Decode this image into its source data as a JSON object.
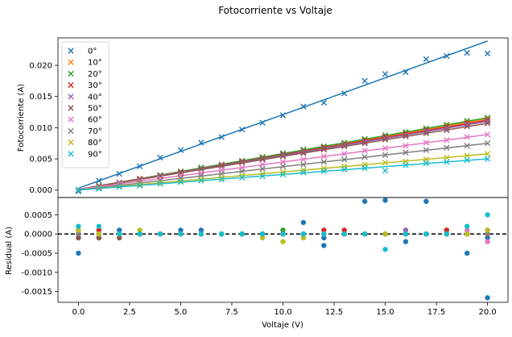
{
  "title": "Fotocorriente vs Voltaje",
  "chart_data": [
    {
      "type": "scatter",
      "panel": "top",
      "ylabel": "Fotocorriente (A)",
      "xlim": [
        -1,
        21
      ],
      "ylim": [
        -0.0012,
        0.0244
      ],
      "yticks": [
        "0.000",
        "0.005",
        "0.010",
        "0.015",
        "0.020"
      ],
      "ytick_values": [
        0,
        0.005,
        0.01,
        0.015,
        0.02
      ],
      "legend_position": "upper-left",
      "x": [
        0,
        1,
        2,
        3,
        4,
        5,
        6,
        7,
        8,
        9,
        10,
        11,
        12,
        13,
        14,
        15,
        16,
        17,
        18,
        19,
        20
      ],
      "series": [
        {
          "name": "0°",
          "color": "#1f77b4",
          "slope": 0.00118,
          "intercept": 0.0003,
          "values": [
            -0.0002,
            0.0015,
            0.0026,
            0.0038,
            0.0052,
            0.0064,
            0.0076,
            0.0085,
            0.0097,
            0.0108,
            0.012,
            0.0134,
            0.014,
            0.0155,
            0.0175,
            0.0186,
            0.0189,
            0.021,
            0.0215,
            0.022,
            0.0219
          ]
        },
        {
          "name": "10°",
          "color": "#ff7f0e",
          "slope": 0.000565,
          "intercept": 0.0001,
          "values": [
            0.0,
            0.0007,
            0.0012,
            0.0018,
            0.0024,
            0.0029,
            0.0035,
            0.0041,
            0.0046,
            0.0052,
            0.0058,
            0.0063,
            0.0069,
            0.0075,
            0.008,
            0.0086,
            0.0092,
            0.0097,
            0.0103,
            0.0109,
            0.0114
          ]
        },
        {
          "name": "20°",
          "color": "#2ca02c",
          "slope": 0.000575,
          "intercept": 0.0001,
          "values": [
            0.0,
            0.0007,
            0.0012,
            0.0018,
            0.0024,
            0.003,
            0.0036,
            0.0041,
            0.0047,
            0.0053,
            0.0059,
            0.0065,
            0.007,
            0.0076,
            0.0082,
            0.0088,
            0.0093,
            0.0099,
            0.0105,
            0.0111,
            0.0116
          ]
        },
        {
          "name": "30°",
          "color": "#d62728",
          "slope": 0.000555,
          "intercept": 0.0001,
          "values": [
            0.0,
            0.0006,
            0.0012,
            0.0018,
            0.0023,
            0.0029,
            0.0034,
            0.004,
            0.0046,
            0.0051,
            0.0057,
            0.0062,
            0.0068,
            0.0073,
            0.0079,
            0.0085,
            0.009,
            0.0096,
            0.0101,
            0.0107,
            0.0112
          ]
        },
        {
          "name": "40°",
          "color": "#9467bd",
          "slope": 0.000545,
          "intercept": 0.0001,
          "values": [
            0.0,
            0.0006,
            0.0012,
            0.0017,
            0.0023,
            0.0028,
            0.0034,
            0.0039,
            0.0045,
            0.005,
            0.0056,
            0.0061,
            0.0066,
            0.0072,
            0.0077,
            0.0083,
            0.0088,
            0.0094,
            0.0099,
            0.0105,
            0.011
          ]
        },
        {
          "name": "50°",
          "color": "#8c564b",
          "slope": 0.00053,
          "intercept": 0.0001,
          "values": [
            0.0,
            0.0006,
            0.0011,
            0.0017,
            0.0022,
            0.0027,
            0.0033,
            0.0038,
            0.0044,
            0.0049,
            0.0054,
            0.0059,
            0.0065,
            0.007,
            0.0075,
            0.0081,
            0.0086,
            0.0091,
            0.0096,
            0.0102,
            0.0107
          ]
        },
        {
          "name": "60°",
          "color": "#e377c2",
          "slope": 0.00044,
          "intercept": 0.0001,
          "values": [
            0.0,
            0.0005,
            0.001,
            0.0014,
            0.0019,
            0.0023,
            0.0027,
            0.0032,
            0.0036,
            0.0041,
            0.0045,
            0.0049,
            0.0054,
            0.0058,
            0.0063,
            0.0067,
            0.0071,
            0.0076,
            0.008,
            0.0085,
            0.0089
          ]
        },
        {
          "name": "70°",
          "color": "#7f7f7f",
          "slope": 0.000375,
          "intercept": 0.0,
          "values": [
            0.0,
            0.0004,
            0.0008,
            0.0011,
            0.0015,
            0.0019,
            0.0023,
            0.0026,
            0.003,
            0.0034,
            0.0038,
            0.0041,
            0.0045,
            0.0049,
            0.0053,
            0.0056,
            0.006,
            0.0064,
            0.0068,
            0.0071,
            0.0075
          ]
        },
        {
          "name": "80°",
          "color": "#bcbd22",
          "slope": 0.00029,
          "intercept": 0.0,
          "values": [
            0.0,
            0.0003,
            0.0006,
            0.0009,
            0.0012,
            0.0015,
            0.0017,
            0.002,
            0.0023,
            0.0026,
            0.0029,
            0.0032,
            0.0035,
            0.0038,
            0.0041,
            0.0044,
            0.0046,
            0.0049,
            0.0052,
            0.0055,
            0.0058
          ]
        },
        {
          "name": "90°",
          "color": "#17becf",
          "slope": 0.00025,
          "intercept": 0.0,
          "values": [
            0.0,
            0.0002,
            0.0005,
            0.0007,
            0.001,
            0.0013,
            0.0015,
            0.0017,
            0.002,
            0.0022,
            0.0025,
            0.0028,
            0.003,
            0.0033,
            0.0035,
            0.0031,
            0.004,
            0.0043,
            0.0045,
            0.0048,
            0.005
          ]
        }
      ]
    },
    {
      "type": "scatter",
      "panel": "bottom",
      "xlabel": "Voltaje (V)",
      "ylabel": "Residual (A)",
      "xlim": [
        -1,
        21
      ],
      "ylim": [
        -0.00178,
        0.00095
      ],
      "xticks": [
        "0.0",
        "2.5",
        "5.0",
        "7.5",
        "10.0",
        "12.5",
        "15.0",
        "17.5",
        "20.0"
      ],
      "xtick_values": [
        0,
        2.5,
        5,
        7.5,
        10,
        12.5,
        15,
        17.5,
        20
      ],
      "yticks": [
        "0.0005",
        "0.0000",
        "-0.0005",
        "-0.0010",
        "-0.0015"
      ],
      "ytick_values": [
        0.0005,
        0,
        -0.0005,
        -0.001,
        -0.0015
      ],
      "reference_line": 0,
      "x": [
        0,
        1,
        2,
        3,
        4,
        5,
        6,
        7,
        8,
        9,
        10,
        11,
        12,
        13,
        14,
        15,
        16,
        17,
        18,
        19,
        20
      ],
      "residuals": [
        {
          "name": "0°",
          "color": "#1f77b4",
          "values": [
            -0.0005,
            0.0,
            0.0001,
            0.0,
            0.0,
            0.0001,
            0.0001,
            0.0,
            0.0,
            0.0,
            0.0,
            0.0,
            -0.0001,
            0.0,
            0.00085,
            0.00088,
            0.0,
            0.00085,
            0.0,
            -0.0005,
            -0.0001
          ]
        },
        {
          "name": "10°",
          "color": "#ff7f0e",
          "values": [
            0.0,
            0.0001,
            0.0,
            0.0,
            0.0,
            0.0,
            0.0,
            0.0,
            0.0,
            0.0,
            0.0,
            0.0,
            0.0,
            0.0,
            0.0,
            0.0,
            0.0,
            0.0,
            0.0,
            0.0,
            0.0
          ]
        },
        {
          "name": "20°",
          "color": "#2ca02c",
          "values": [
            -0.0001,
            -0.0001,
            0.0,
            0.0,
            0.0,
            0.0,
            0.0,
            0.0,
            0.0,
            0.0,
            0.0001,
            0.0,
            0.0,
            0.0,
            0.0,
            0.0,
            0.0,
            0.0,
            0.0001,
            0.0,
            0.0
          ]
        },
        {
          "name": "30°",
          "color": "#d62728",
          "values": [
            0.0001,
            0.0001,
            0.0,
            0.0,
            0.0,
            0.0,
            0.0,
            0.0,
            0.0,
            0.0,
            0.0,
            0.0,
            0.0001,
            0.0001,
            0.0,
            0.0,
            0.0,
            0.0,
            0.0001,
            0.0,
            0.0
          ]
        },
        {
          "name": "40°",
          "color": "#9467bd",
          "values": [
            0.0,
            -0.0001,
            0.0,
            0.0,
            0.0,
            0.0,
            0.0,
            0.0,
            0.0,
            0.0,
            0.0,
            0.0,
            0.0,
            0.0,
            0.0,
            0.0,
            0.0001,
            0.0,
            0.0,
            0.0,
            0.0001
          ]
        },
        {
          "name": "50°",
          "color": "#8c564b",
          "values": [
            -0.0001,
            -0.0001,
            -0.0001,
            0.0,
            0.0,
            0.0,
            0.0,
            0.0,
            0.0,
            0.0,
            0.0,
            0.0,
            0.0,
            0.0,
            0.0,
            0.0,
            0.0,
            0.0,
            0.0,
            0.0,
            0.0
          ]
        },
        {
          "name": "60°",
          "color": "#e377c2",
          "values": [
            0.0,
            0.0,
            0.0,
            0.0,
            0.0,
            0.0,
            0.0,
            0.0,
            0.0,
            0.0,
            0.0,
            0.0,
            0.0,
            0.0,
            0.0,
            0.0,
            0.0,
            0.0,
            0.0,
            0.0001,
            -0.0002
          ]
        },
        {
          "name": "70°",
          "color": "#7f7f7f",
          "values": [
            0.0,
            0.0,
            0.0,
            0.0,
            0.0,
            0.0,
            0.0,
            0.0,
            0.0,
            0.0,
            0.0,
            0.0,
            0.0,
            0.0,
            0.0,
            0.0,
            0.0,
            0.0,
            0.0,
            0.0,
            0.0
          ]
        },
        {
          "name": "80°",
          "color": "#bcbd22",
          "values": [
            0.0001,
            0.0,
            0.0,
            0.0001,
            0.0,
            0.0,
            0.0,
            0.0,
            0.0,
            -0.0001,
            -0.0002,
            -0.0001,
            0.0,
            0.0,
            0.0,
            0.0,
            0.0,
            0.0,
            0.0,
            0.0,
            0.0001
          ]
        },
        {
          "name": "90°",
          "color": "#17becf",
          "values": [
            0.0002,
            0.0002,
            0.0,
            0.0,
            0.0,
            0.0,
            0.0,
            0.0,
            0.0,
            0.0,
            0.0,
            0.0,
            0.0,
            0.0,
            0.0,
            -0.0004,
            0.0,
            0.0,
            0.0,
            0.0002,
            0.0005
          ]
        }
      ],
      "extra_points": [
        {
          "name": "0°",
          "color": "#1f77b4",
          "x": 20,
          "value": -0.00166
        },
        {
          "name": "0°",
          "color": "#1f77b4",
          "x": 11,
          "value": 0.0003
        },
        {
          "name": "0°",
          "color": "#1f77b4",
          "x": 12,
          "value": -0.0003
        },
        {
          "name": "0°",
          "color": "#1f77b4",
          "x": 16,
          "value": -0.0002
        }
      ]
    }
  ]
}
